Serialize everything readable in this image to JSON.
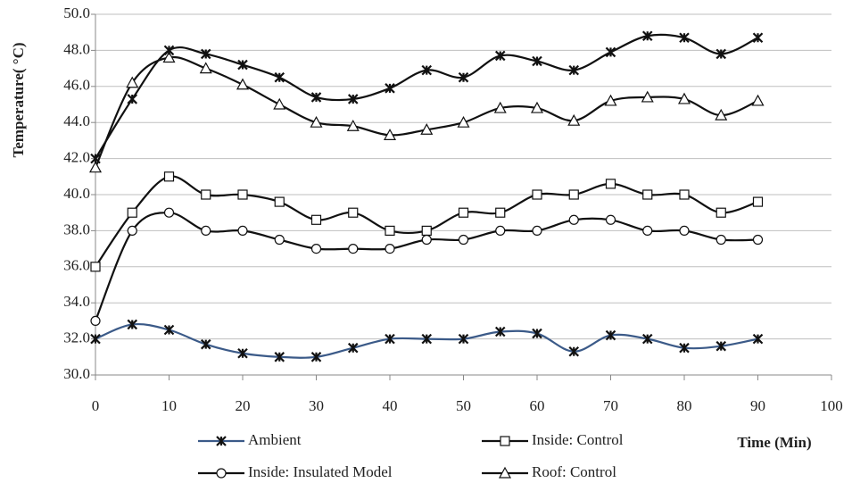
{
  "chart_data": {
    "type": "line",
    "y_label": "Temperature( °C)",
    "x_label": "Time (Min)",
    "x": [
      0,
      5,
      10,
      15,
      20,
      25,
      30,
      35,
      40,
      45,
      50,
      55,
      60,
      65,
      70,
      75,
      80,
      85,
      90
    ],
    "series": [
      {
        "name": "Ambient",
        "color": "#3b5a88",
        "marker": "x",
        "values": [
          32.0,
          32.8,
          32.5,
          31.7,
          31.2,
          31.0,
          31.0,
          31.5,
          32.0,
          32.0,
          32.0,
          32.4,
          32.3,
          31.3,
          32.2,
          32.0,
          31.5,
          31.6,
          32.0
        ]
      },
      {
        "name": "Inside: Control",
        "color": "#111111",
        "marker": "square",
        "values": [
          36.0,
          39.0,
          41.0,
          40.0,
          40.0,
          39.6,
          38.6,
          39.0,
          38.0,
          38.0,
          39.0,
          39.0,
          40.0,
          40.0,
          40.6,
          40.0,
          40.0,
          39.0,
          39.6
        ]
      },
      {
        "name": "Inside: Insulated Model",
        "color": "#111111",
        "marker": "circle",
        "values": [
          33.0,
          38.0,
          39.0,
          38.0,
          38.0,
          37.5,
          37.0,
          37.0,
          37.0,
          37.5,
          37.5,
          38.0,
          38.0,
          38.6,
          38.6,
          38.0,
          38.0,
          37.5,
          37.5
        ]
      },
      {
        "name": "Roof: Control",
        "color": "#111111",
        "marker": "triangle",
        "values": [
          41.5,
          46.2,
          47.6,
          47.0,
          46.1,
          45.0,
          44.0,
          43.8,
          43.3,
          43.6,
          44.0,
          44.8,
          44.8,
          44.1,
          45.2,
          45.4,
          45.3,
          44.4,
          45.2
        ]
      },
      {
        "color": "#111111",
        "marker": "x",
        "values": [
          42.0,
          45.3,
          48.0,
          47.8,
          47.2,
          46.5,
          45.4,
          45.3,
          45.9,
          46.9,
          46.5,
          47.7,
          47.4,
          46.9,
          47.9,
          48.8,
          48.7,
          47.8,
          48.7
        ]
      }
    ],
    "xlim": [
      0,
      100
    ],
    "xticks": [
      0,
      10,
      20,
      30,
      40,
      50,
      60,
      70,
      80,
      90,
      100
    ],
    "ylim": [
      30,
      50
    ],
    "yticks": [
      {
        "value": 30,
        "label": "30.0"
      },
      {
        "value": 32,
        "label": "32.0"
      },
      {
        "value": 34,
        "label": "34.0"
      },
      {
        "value": 36,
        "label": "36.0"
      },
      {
        "value": 38,
        "label": "38.0"
      },
      {
        "value": 40,
        "label": "40.0"
      },
      {
        "value": 42,
        "label": "42.0"
      },
      {
        "value": 44,
        "label": "44.0"
      },
      {
        "value": 46,
        "label": "46.0"
      },
      {
        "value": 48,
        "label": "48.0"
      },
      {
        "value": 50,
        "label": "50.0"
      }
    ],
    "grid": true
  }
}
